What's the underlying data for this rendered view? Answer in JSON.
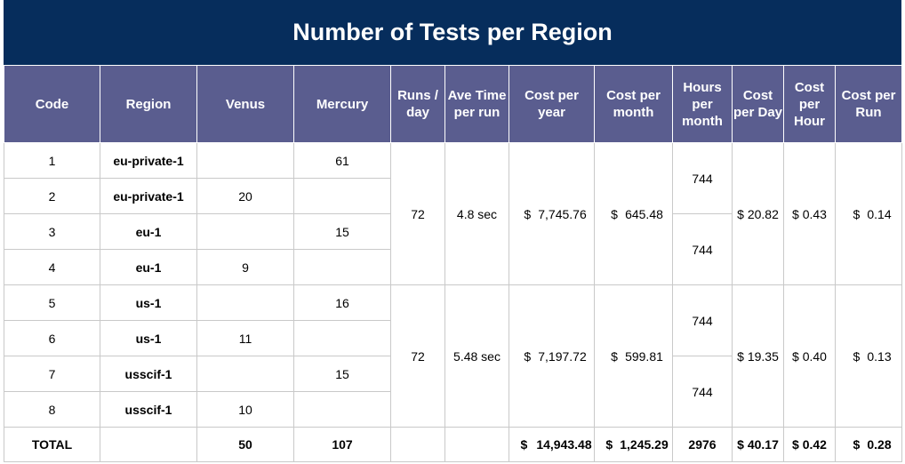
{
  "title": "Number of Tests per Region",
  "headers": {
    "code": "Code",
    "region": "Region",
    "venus": "Venus",
    "mercury": "Mercury",
    "runs_day": "Runs / day",
    "ave_time": "Ave Time per run",
    "cost_year": "Cost per year",
    "cost_month": "Cost per month",
    "hours_month": "Hours per month",
    "cost_day": "Cost per Day",
    "cost_hour": "Cost per Hour",
    "cost_run": "Cost per Run"
  },
  "rows": [
    {
      "code": "1",
      "region": "eu-private-1",
      "venus": "",
      "mercury": "61"
    },
    {
      "code": "2",
      "region": "eu-private-1",
      "venus": "20",
      "mercury": ""
    },
    {
      "code": "3",
      "region": "eu-1",
      "venus": "",
      "mercury": "15"
    },
    {
      "code": "4",
      "region": "eu-1",
      "venus": "9",
      "mercury": ""
    },
    {
      "code": "5",
      "region": "us-1",
      "venus": "",
      "mercury": "16"
    },
    {
      "code": "6",
      "region": "us-1",
      "venus": "11",
      "mercury": ""
    },
    {
      "code": "7",
      "region": "usscif-1",
      "venus": "",
      "mercury": "15"
    },
    {
      "code": "8",
      "region": "usscif-1",
      "venus": "10",
      "mercury": ""
    }
  ],
  "groups": [
    {
      "runs_day": "72",
      "ave_time": "4.8 sec",
      "cost_year_sym": "$",
      "cost_year": "7,745.76",
      "cost_month_sym": "$",
      "cost_month": "645.48",
      "hours_top": "744",
      "hours_bottom": "744",
      "cost_day": "$ 20.82",
      "cost_hour": "$ 0.43",
      "cost_run_sym": "$",
      "cost_run": "0.14"
    },
    {
      "runs_day": "72",
      "ave_time": "5.48 sec",
      "cost_year_sym": "$",
      "cost_year": "7,197.72",
      "cost_month_sym": "$",
      "cost_month": "599.81",
      "hours_top": "744",
      "hours_bottom": "744",
      "cost_day": "$ 19.35",
      "cost_hour": "$ 0.40",
      "cost_run_sym": "$",
      "cost_run": "0.13"
    }
  ],
  "total": {
    "label": "TOTAL",
    "venus": "50",
    "mercury": "107",
    "cost_year_sym": "$",
    "cost_year": "14,943.48",
    "cost_month_sym": "$",
    "cost_month": "1,245.29",
    "hours_month": "2976",
    "cost_day": "$ 40.17",
    "cost_hour": "$ 0.42",
    "cost_run_sym": "$",
    "cost_run": "0.28"
  },
  "colors": {
    "title_bg": "#062d5c",
    "header_bg": "#5a5d8f",
    "grid": "#c9c9c9"
  }
}
